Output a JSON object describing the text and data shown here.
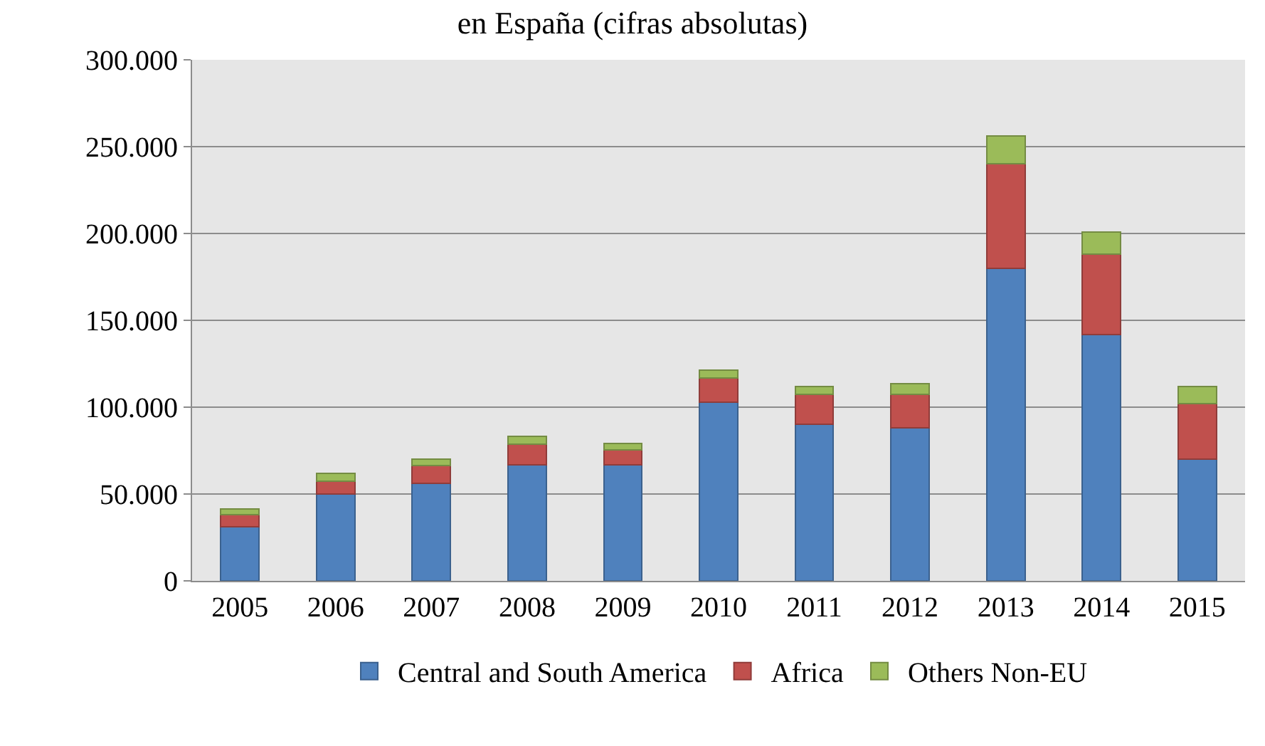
{
  "chart_data": {
    "type": "bar",
    "title": "en España (cifras absolutas)",
    "stacked": true,
    "categories": [
      "2005",
      "2006",
      "2007",
      "2008",
      "2009",
      "2010",
      "2011",
      "2012",
      "2013",
      "2014",
      "2015"
    ],
    "series": [
      {
        "name": "Central and South America",
        "color": "#4f81bd",
        "values": [
          31000,
          50000,
          56000,
          67000,
          67000,
          103000,
          90000,
          88000,
          180000,
          142000,
          70000
        ]
      },
      {
        "name": "Africa",
        "color": "#c0504d",
        "values": [
          7000,
          7500,
          10500,
          11500,
          8500,
          14000,
          17500,
          19500,
          60000,
          46000,
          32000
        ]
      },
      {
        "name": "Others Non-EU",
        "color": "#9bbb59",
        "values": [
          3500,
          4500,
          3500,
          4500,
          3500,
          4500,
          4500,
          6000,
          16000,
          13000,
          10000
        ]
      }
    ],
    "ylim": [
      0,
      300000
    ],
    "yticks": [
      {
        "value": 0,
        "label": "0"
      },
      {
        "value": 50000,
        "label": "50.000"
      },
      {
        "value": 100000,
        "label": "100.000"
      },
      {
        "value": 150000,
        "label": "150.000"
      },
      {
        "value": 200000,
        "label": "200.000"
      },
      {
        "value": 250000,
        "label": "250.000"
      },
      {
        "value": 300000,
        "label": "300.000"
      }
    ],
    "grid": "y",
    "legend": "bottom"
  }
}
